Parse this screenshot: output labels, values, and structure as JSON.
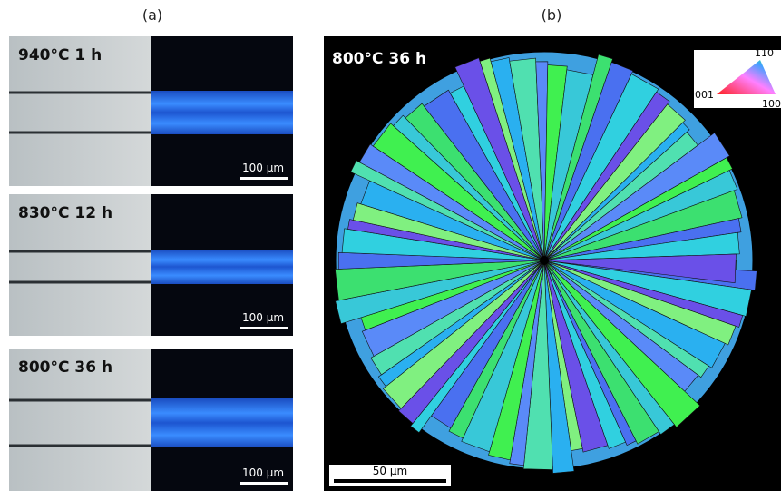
{
  "panel_a": {
    "label": "(a)",
    "rows": [
      {
        "label": "940°C 1 h",
        "scale_bar": "100 μm"
      },
      {
        "label": "830°C 12 h",
        "scale_bar": "100 μm"
      },
      {
        "label": "800°C 36 h",
        "scale_bar": "100 μm"
      }
    ]
  },
  "panel_b": {
    "label": "(b)",
    "sample": "800°C 36 h",
    "legend": [
      "110",
      "001",
      "100"
    ],
    "scale_bar": "50 μm"
  }
}
